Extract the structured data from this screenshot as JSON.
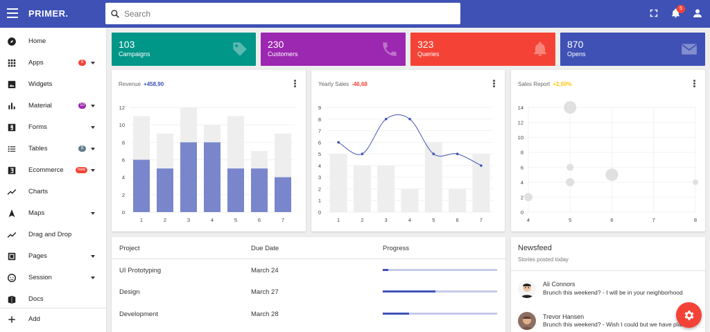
{
  "app": {
    "logo": "PRIMER."
  },
  "search": {
    "placeholder": "Search"
  },
  "topbar": {
    "notification_count": "5"
  },
  "sidebar": {
    "items": [
      {
        "label": "Home",
        "icon": "compass-icon"
      },
      {
        "label": "Apps",
        "icon": "apps-grid-icon",
        "badge": "8",
        "badge_color": "#f44336",
        "expandable": true
      },
      {
        "label": "Widgets",
        "icon": "image-icon"
      },
      {
        "label": "Material",
        "icon": "bar-chart-icon",
        "badge": "10",
        "badge_color": "#9c27b0",
        "expandable": true
      },
      {
        "label": "Forms",
        "icon": "forms-icon",
        "expandable": true
      },
      {
        "label": "Tables",
        "icon": "list-icon",
        "badge": "8",
        "badge_color": "#607d8b",
        "expandable": true
      },
      {
        "label": "Ecommerce",
        "icon": "ecommerce-icon",
        "badge": "new",
        "badge_color": "#f44336",
        "expandable": true
      },
      {
        "label": "Charts",
        "icon": "trend-line-icon"
      },
      {
        "label": "Maps",
        "icon": "navigation-icon",
        "expandable": true
      },
      {
        "label": "Drag and Drop",
        "icon": "drag-line-icon"
      },
      {
        "label": "Pages",
        "icon": "pages-icon",
        "expandable": true
      },
      {
        "label": "Session",
        "icon": "face-icon",
        "expandable": true
      },
      {
        "label": "Docs",
        "icon": "book-icon"
      }
    ],
    "add_label": "Add"
  },
  "stats": [
    {
      "value": "103",
      "label": "Campaigns",
      "color": "#009688",
      "icon": "tag-icon"
    },
    {
      "value": "230",
      "label": "Customers",
      "color": "#9c27b0",
      "icon": "phone-icon"
    },
    {
      "value": "323",
      "label": "Queries",
      "color": "#f44336",
      "icon": "bell-icon"
    },
    {
      "value": "870",
      "label": "Opens",
      "color": "#3f51b5",
      "icon": "mail-icon"
    }
  ],
  "charts": {
    "revenue": {
      "title": "Revenue",
      "delta": "+458,90",
      "delta_color": "#3f51b5"
    },
    "yearly": {
      "title": "Yearly Sales",
      "delta": "-46,68",
      "delta_color": "#f44336"
    },
    "sales": {
      "title": "Sales Report",
      "delta": "+2,50%",
      "delta_color": "#ffc107"
    }
  },
  "chart_data": [
    {
      "type": "bar",
      "title": "Revenue",
      "categories": [
        "1",
        "2",
        "3",
        "4",
        "5",
        "6",
        "7"
      ],
      "series": [
        {
          "values": [
            6,
            5,
            8,
            8,
            5,
            5,
            4
          ]
        },
        {
          "values": [
            11,
            9,
            12,
            10,
            11,
            7,
            9
          ]
        }
      ],
      "ylim": [
        0,
        12
      ],
      "yticks": [
        0,
        2,
        4,
        6,
        8,
        10,
        12
      ],
      "colors": [
        "#7986cb",
        "#eeeeee"
      ]
    },
    {
      "type": "line",
      "title": "Yearly Sales",
      "x": [
        "1",
        "2",
        "3",
        "4",
        "5",
        "6",
        "7"
      ],
      "bars": [
        5,
        4,
        4,
        2,
        6,
        2,
        5
      ],
      "line": [
        6,
        5,
        8,
        8,
        5,
        5,
        4
      ],
      "ylim": [
        0,
        9
      ],
      "yticks": [
        0,
        1,
        2,
        3,
        4,
        5,
        6,
        7,
        8,
        9
      ],
      "colors": [
        "#eeeeee",
        "#3f51b5"
      ]
    },
    {
      "type": "scatter",
      "title": "Sales Report",
      "points": [
        {
          "x": 4,
          "y": 2,
          "r": 6
        },
        {
          "x": 5,
          "y": 14,
          "r": 9
        },
        {
          "x": 5,
          "y": 6,
          "r": 5
        },
        {
          "x": 5,
          "y": 4,
          "r": 6
        },
        {
          "x": 6,
          "y": 5,
          "r": 9
        },
        {
          "x": 8,
          "y": 4,
          "r": 4
        }
      ],
      "xlim": [
        4,
        8
      ],
      "ylim": [
        0,
        14
      ],
      "xticks": [
        4,
        5,
        6,
        7,
        8
      ],
      "yticks": [
        0,
        2,
        4,
        6,
        8,
        10,
        12,
        14
      ],
      "color": "#e0e0e0"
    }
  ],
  "projects": {
    "headers": {
      "project": "Project",
      "due": "Due Date",
      "progress": "Progress"
    },
    "rows": [
      {
        "project": "UI Prototyping",
        "due": "March 24",
        "progress": 0.05
      },
      {
        "project": "Design",
        "due": "March 27",
        "progress": 0.46
      },
      {
        "project": "Development",
        "due": "March 28",
        "progress": 0.23
      }
    ]
  },
  "newsfeed": {
    "title": "Newsfeed",
    "subtitle": "Stories posted today",
    "items": [
      {
        "name": "Ali Connors",
        "text": "Brunch this weekend? - I will be in your neighborhood"
      },
      {
        "name": "Trevor Hansen",
        "text": "Brunch this weekend? - Wish I could but we have plans"
      }
    ]
  }
}
